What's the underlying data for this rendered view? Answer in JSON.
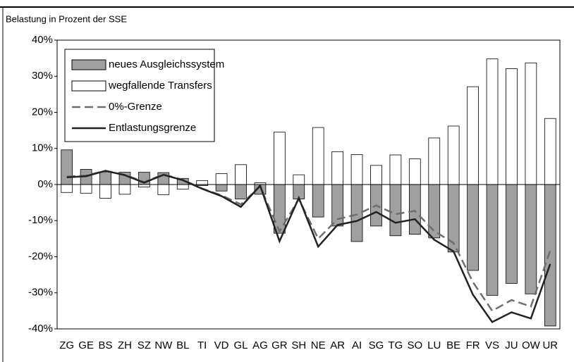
{
  "chart_data": {
    "type": "bar",
    "title": "Belastung in Prozent der SSE",
    "categories": [
      "ZG",
      "GE",
      "BS",
      "ZH",
      "SZ",
      "NW",
      "BL",
      "TI",
      "VD",
      "GL",
      "AG",
      "GR",
      "SH",
      "NE",
      "AR",
      "AI",
      "SG",
      "TG",
      "SO",
      "LU",
      "BE",
      "FR",
      "VS",
      "JU",
      "OW",
      "UR"
    ],
    "series": [
      {
        "name": "neues Ausgleichssystem",
        "kind": "bar",
        "color": "#a0a0a0",
        "values": [
          9.6,
          4.2,
          3.5,
          3.4,
          3.4,
          3.3,
          1.7,
          -0.3,
          -1.8,
          -4.0,
          -2.7,
          -13.5,
          -4.0,
          -9.0,
          -11.5,
          -15.8,
          -11.5,
          -14.2,
          -13.8,
          -14.8,
          -18.7,
          -23.8,
          -30.7,
          -27.4,
          -30.3,
          -39.2
        ]
      },
      {
        "name": "wegfallende Transfers",
        "kind": "bar",
        "color": "#ffffff",
        "values": [
          -2.2,
          -2.4,
          -3.8,
          -2.7,
          -0.7,
          -2.8,
          -1.3,
          1.1,
          3.0,
          5.5,
          0.5,
          14.5,
          2.7,
          15.8,
          9.1,
          8.3,
          5.3,
          8.2,
          7.1,
          12.9,
          16.2,
          27.1,
          34.8,
          32.1,
          33.7,
          18.3
        ]
      },
      {
        "name": "0%-Grenze",
        "kind": "dashed-line",
        "color": "#6e6e6e",
        "values": [
          2.2,
          2.5,
          3.8,
          2.7,
          0.7,
          2.8,
          1.3,
          -1.1,
          -3.0,
          -5.5,
          -0.5,
          -13.0,
          -4.0,
          -15.0,
          -9.6,
          -8.3,
          -5.8,
          -8.2,
          -7.3,
          -12.9,
          -16.2,
          -27.0,
          -35.0,
          -32.0,
          -33.8,
          -18.3
        ]
      },
      {
        "name": "Entlastungsgrenze",
        "kind": "line",
        "color": "#222222",
        "values": [
          2.0,
          2.3,
          3.8,
          2.6,
          0.5,
          2.7,
          1.2,
          -1.2,
          -3.2,
          -6.2,
          -0.3,
          -15.7,
          -3.7,
          -17.2,
          -11.2,
          -10.1,
          -7.6,
          -10.6,
          -9.6,
          -15.3,
          -18.5,
          -30.5,
          -38.1,
          -35.4,
          -37.1,
          -22.0
        ]
      }
    ],
    "ylim": [
      -40,
      40
    ],
    "yticks": [
      {
        "value": -40,
        "label": "-40%"
      },
      {
        "value": -30,
        "label": "-30%"
      },
      {
        "value": -20,
        "label": "-20%"
      },
      {
        "value": -10,
        "label": "-10%"
      },
      {
        "value": 0,
        "label": "0%"
      },
      {
        "value": 10,
        "label": "10%"
      },
      {
        "value": 20,
        "label": "20%"
      },
      {
        "value": 30,
        "label": "30%"
      },
      {
        "value": 40,
        "label": "40%"
      }
    ],
    "legend": "upper left"
  }
}
